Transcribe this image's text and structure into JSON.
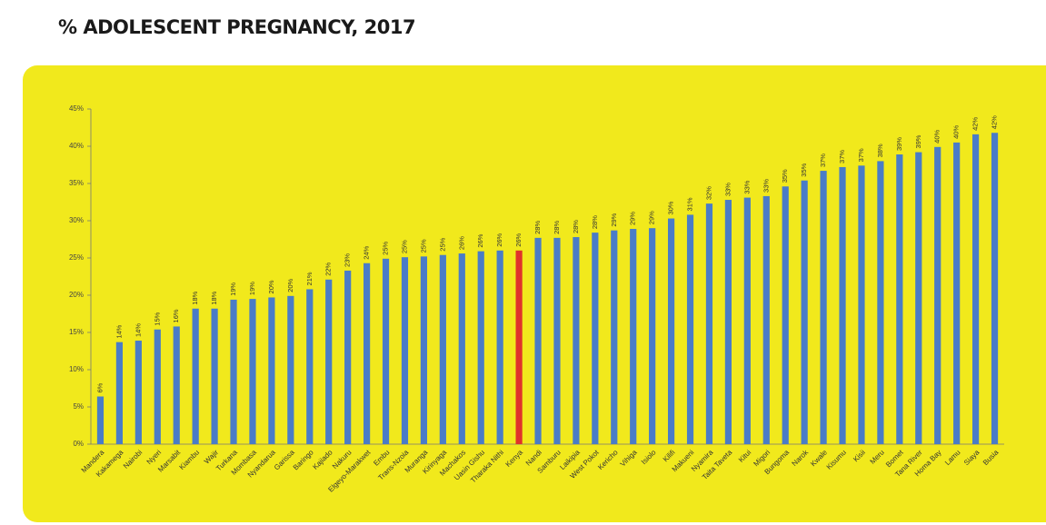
{
  "chart_data": {
    "type": "bar",
    "title": "% ADOLESCENT PREGNANCY, 2017",
    "categories": [
      "Mandera",
      "Kakamega",
      "Nairobi",
      "Nyeri",
      "Marsabit",
      "Kiambu",
      "Wajir",
      "Turkana",
      "Mombasa",
      "Nyandarua",
      "Garissa",
      "Baringo",
      "Kajiado",
      "Nakuru",
      "Elgeyo-Marakwet",
      "Embu",
      "Trans-Nzoia",
      "Muranga",
      "Kirinyaga",
      "Machakos",
      "Uasin Gishu",
      "Tharaka Nithi",
      "Kenya",
      "Nandi",
      "Samburu",
      "Laikipia",
      "West Pokot",
      "Kericho",
      "Vihiga",
      "Isiolo",
      "Kilifi",
      "Makueni",
      "Nyamira",
      "Taita Taveta",
      "Kitui",
      "Migori",
      "Bungoma",
      "Narok",
      "Kwale",
      "Kisumu",
      "Kisii",
      "Meru",
      "Bomet",
      "Tana River",
      "Homa Bay",
      "Lamu",
      "Siaya",
      "Busia"
    ],
    "values": [
      6.4,
      13.7,
      13.9,
      15.4,
      15.8,
      18.2,
      18.2,
      19.4,
      19.5,
      19.7,
      19.9,
      20.8,
      22.1,
      23.3,
      24.3,
      24.9,
      25.1,
      25.2,
      25.4,
      25.6,
      25.9,
      26.0,
      26.0,
      27.7,
      27.7,
      27.8,
      28.4,
      28.7,
      28.9,
      29.0,
      30.3,
      30.8,
      32.3,
      32.8,
      33.1,
      33.3,
      34.6,
      35.4,
      36.7,
      37.2,
      37.4,
      38.0,
      38.9,
      39.2,
      39.9,
      40.5,
      41.6,
      41.8
    ],
    "value_labels": [
      "6%",
      "14%",
      "14%",
      "15%",
      "16%",
      "18%",
      "18%",
      "19%",
      "19%",
      "20%",
      "20%",
      "21%",
      "22%",
      "23%",
      "24%",
      "25%",
      "25%",
      "25%",
      "25%",
      "26%",
      "26%",
      "26%",
      "26%",
      "28%",
      "28%",
      "28%",
      "28%",
      "29%",
      "29%",
      "29%",
      "30%",
      "31%",
      "32%",
      "33%",
      "33%",
      "33%",
      "35%",
      "35%",
      "37%",
      "37%",
      "37%",
      "38%",
      "39%",
      "39%",
      "40%",
      "40%",
      "42%",
      "42%"
    ],
    "colors": [
      "#4a7cc7",
      "#4a7cc7",
      "#4a7cc7",
      "#4a7cc7",
      "#4a7cc7",
      "#4a7cc7",
      "#4a7cc7",
      "#4a7cc7",
      "#4a7cc7",
      "#4a7cc7",
      "#4a7cc7",
      "#4a7cc7",
      "#4a7cc7",
      "#4a7cc7",
      "#4a7cc7",
      "#4a7cc7",
      "#4a7cc7",
      "#4a7cc7",
      "#4a7cc7",
      "#4a7cc7",
      "#4a7cc7",
      "#4a7cc7",
      "#e0322b",
      "#4a7cc7",
      "#4a7cc7",
      "#4a7cc7",
      "#4a7cc7",
      "#4a7cc7",
      "#4a7cc7",
      "#4a7cc7",
      "#4a7cc7",
      "#4a7cc7",
      "#4a7cc7",
      "#4a7cc7",
      "#4a7cc7",
      "#4a7cc7",
      "#4a7cc7",
      "#4a7cc7",
      "#4a7cc7",
      "#4a7cc7",
      "#4a7cc7",
      "#4a7cc7",
      "#4a7cc7",
      "#4a7cc7",
      "#4a7cc7",
      "#4a7cc7",
      "#4a7cc7",
      "#4a7cc7"
    ],
    "ylim": [
      0,
      45
    ],
    "yticks": [
      {
        "value": 0,
        "label": "0%"
      },
      {
        "value": 5,
        "label": "5%"
      },
      {
        "value": 10,
        "label": "10%"
      },
      {
        "value": 15,
        "label": "15%"
      },
      {
        "value": 20,
        "label": "20%"
      },
      {
        "value": 25,
        "label": "25%"
      },
      {
        "value": 30,
        "label": "30%"
      },
      {
        "value": 35,
        "label": "35%"
      },
      {
        "value": 40,
        "label": "40%"
      },
      {
        "value": 45,
        "label": "45%"
      }
    ],
    "grid": false
  }
}
